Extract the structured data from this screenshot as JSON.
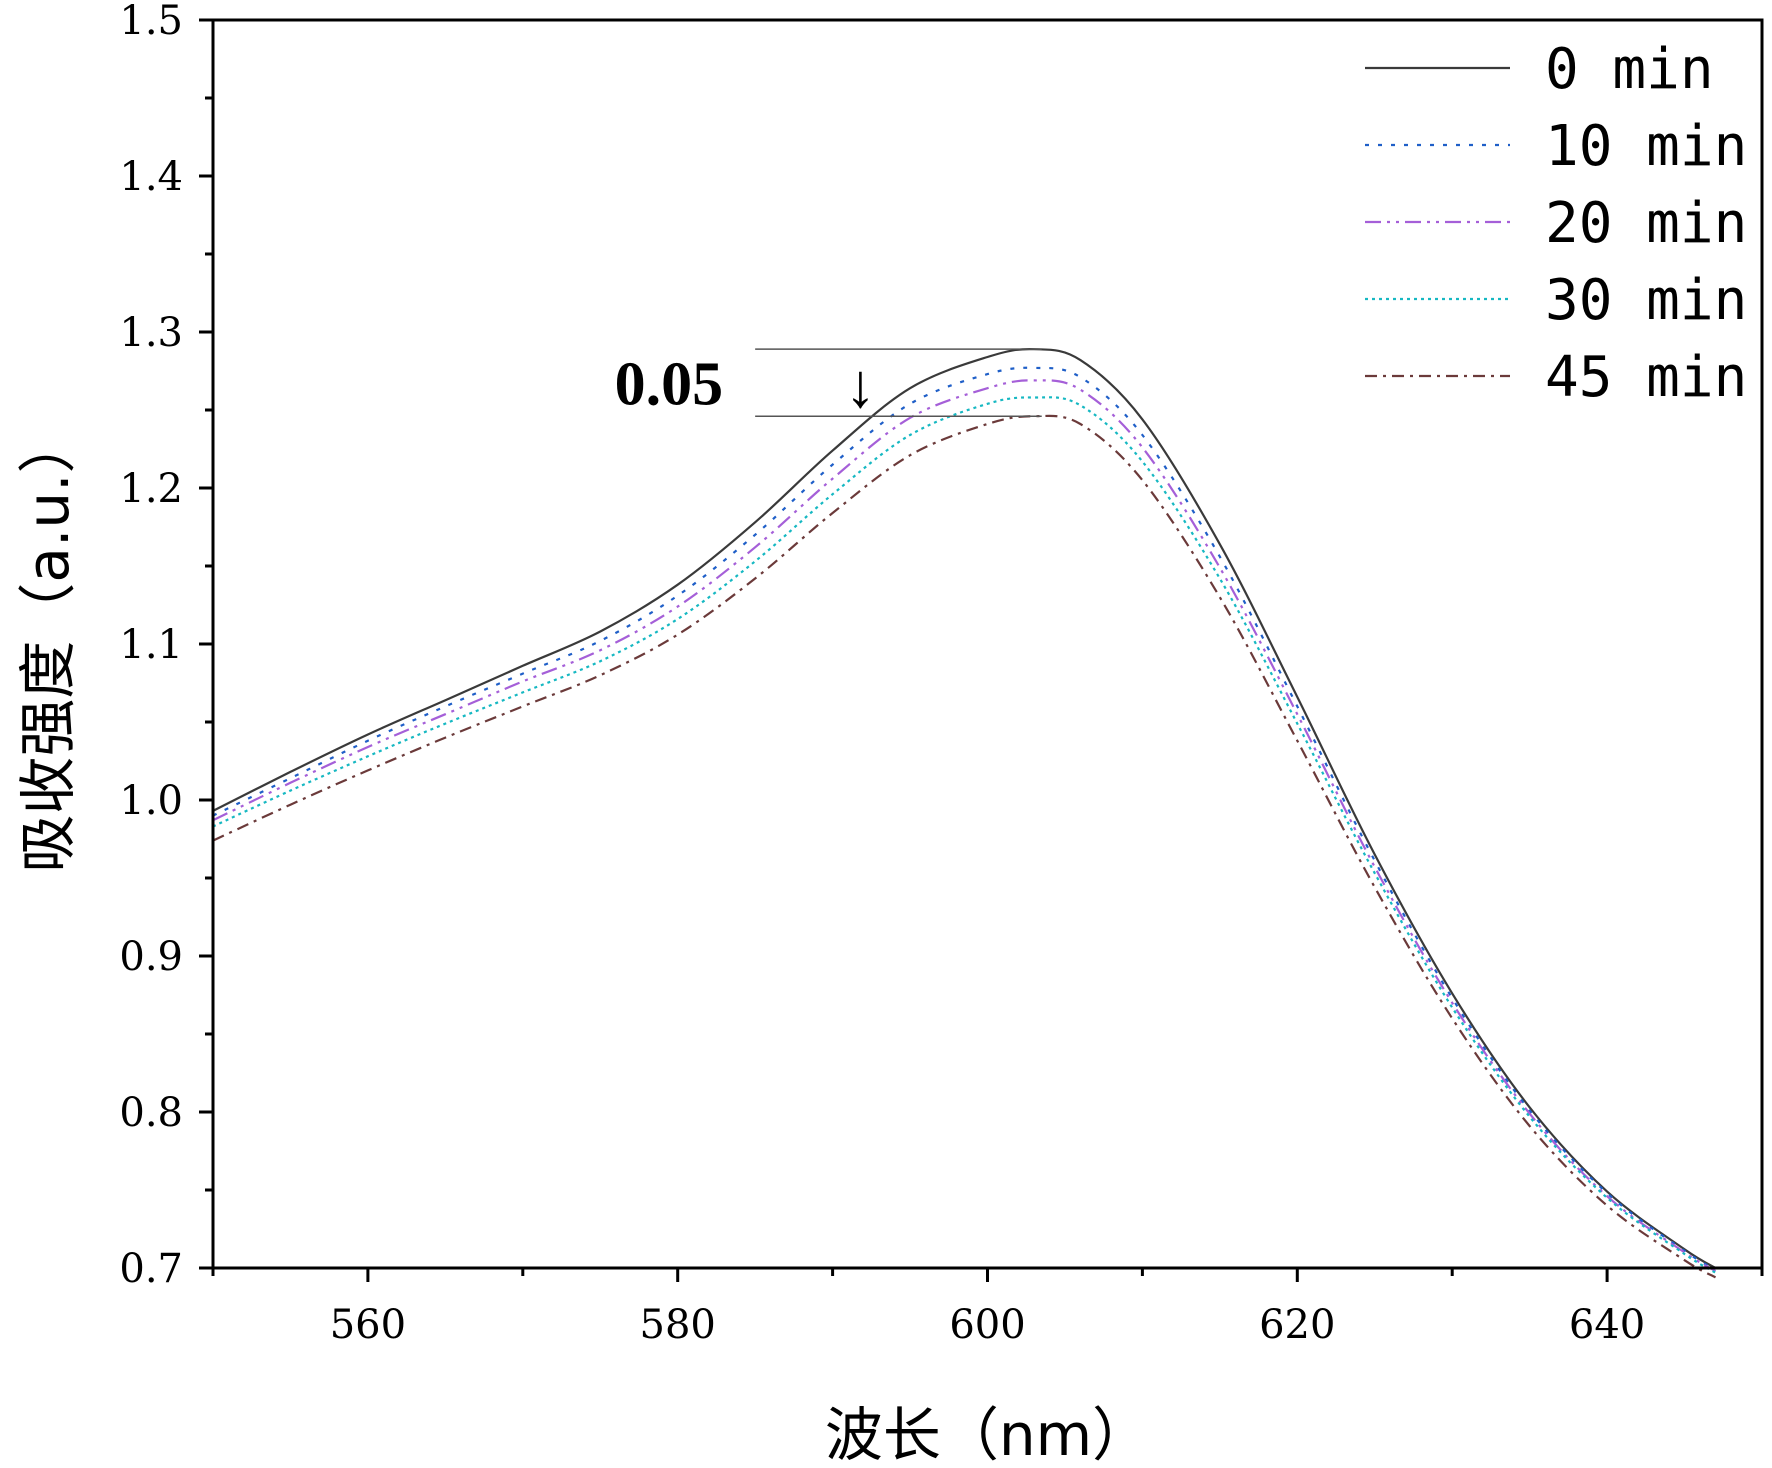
{
  "chart_data": {
    "type": "line",
    "title": "",
    "xlabel": "波长（nm）",
    "ylabel": "吸收强度（a.u.）",
    "xlim": [
      550,
      650
    ],
    "ylim": [
      0.7,
      1.5
    ],
    "x_ticks": [
      560,
      580,
      600,
      620,
      640
    ],
    "x_tick_labels": [
      "560",
      "580",
      "600",
      "620",
      "640"
    ],
    "y_ticks": [
      0.7,
      0.8,
      0.9,
      1.0,
      1.1,
      1.2,
      1.3,
      1.4,
      1.5
    ],
    "y_tick_labels": [
      "0.7",
      "0.8",
      "0.9",
      "1.0",
      "1.1",
      "1.2",
      "1.3",
      "1.4",
      "1.5"
    ],
    "grid": false,
    "legend_position": "top-right",
    "x": [
      550,
      555,
      560,
      565,
      570,
      575,
      580,
      585,
      590,
      595,
      600,
      603,
      606,
      610,
      615,
      620,
      625,
      630,
      635,
      640,
      645,
      647
    ],
    "series": [
      {
        "name": "0 min",
        "color": "#3a3a3a",
        "dash": "solid",
        "values": [
          0.993,
          1.018,
          1.042,
          1.064,
          1.086,
          1.108,
          1.138,
          1.178,
          1.224,
          1.264,
          1.284,
          1.289,
          1.282,
          1.244,
          1.164,
          1.066,
          0.965,
          0.876,
          0.803,
          0.749,
          0.712,
          0.7
        ]
      },
      {
        "name": "10 min",
        "color": "#1f5fc8",
        "dash": "dot",
        "values": [
          0.99,
          1.014,
          1.038,
          1.06,
          1.081,
          1.102,
          1.131,
          1.17,
          1.215,
          1.254,
          1.273,
          1.277,
          1.271,
          1.234,
          1.156,
          1.06,
          0.961,
          0.873,
          0.801,
          0.748,
          0.711,
          0.699
        ]
      },
      {
        "name": "20 min",
        "color": "#a55fd8",
        "dash": "dashdotdot",
        "values": [
          0.987,
          1.011,
          1.034,
          1.055,
          1.076,
          1.096,
          1.124,
          1.162,
          1.206,
          1.245,
          1.264,
          1.269,
          1.263,
          1.226,
          1.149,
          1.055,
          0.957,
          0.87,
          0.799,
          0.746,
          0.71,
          0.698
        ]
      },
      {
        "name": "30 min",
        "color": "#16b8c2",
        "dash": "shortdot",
        "values": [
          0.983,
          1.006,
          1.028,
          1.049,
          1.069,
          1.089,
          1.116,
          1.153,
          1.196,
          1.234,
          1.254,
          1.258,
          1.253,
          1.217,
          1.142,
          1.049,
          0.953,
          0.867,
          0.797,
          0.745,
          0.709,
          0.697
        ]
      },
      {
        "name": "45 min",
        "color": "#6b3a3a",
        "dash": "dashdot",
        "values": [
          0.974,
          0.997,
          1.019,
          1.04,
          1.06,
          1.08,
          1.106,
          1.142,
          1.184,
          1.221,
          1.241,
          1.246,
          1.241,
          1.205,
          1.13,
          1.038,
          0.944,
          0.86,
          0.791,
          0.74,
          0.705,
          0.694
        ]
      }
    ],
    "annotation": {
      "label": "0.05",
      "upper_value": 1.289,
      "lower_value": 1.246,
      "line_x_start": 585,
      "line_x_end": 603.5,
      "arrow_x": 591.8,
      "arrow_glyph": "↓"
    }
  }
}
